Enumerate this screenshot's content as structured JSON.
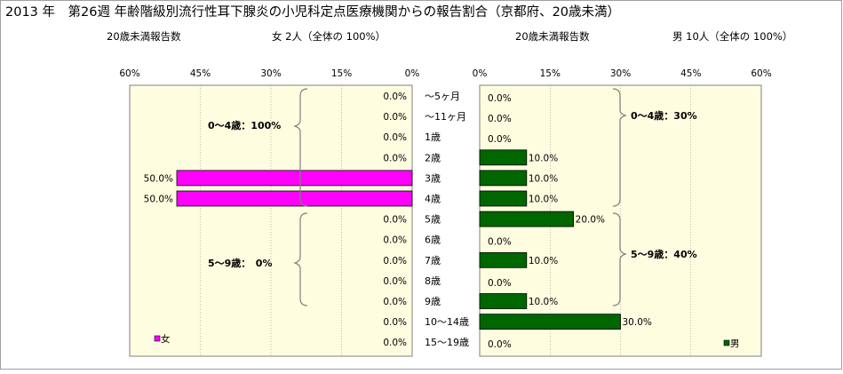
{
  "title": "2013 年　第26週 年齢階級別流行性耳下腺炎の小児科定点医療機関からの報告割合（京都府、20歳未満）",
  "subtitle_left": {
    "label": "20歳未満報告数",
    "count": "女 2人（全体の 100%）"
  },
  "subtitle_right": {
    "label": "20歳未満報告数",
    "count": "男 10人（全体の 100%）"
  },
  "colors": {
    "female": "#ff00ff",
    "male": "#006600",
    "panel_bg": "#fffde0",
    "grid": "#7f7f7f"
  },
  "chart_data": [
    {
      "type": "bar",
      "orientation": "horizontal",
      "direction": "right-to-left",
      "categories": [
        "～5ヶ月",
        "～11ヶ月",
        "1歳",
        "2歳",
        "3歳",
        "4歳",
        "5歳",
        "6歳",
        "7歳",
        "8歳",
        "9歳",
        "10～14歳",
        "15～19歳"
      ],
      "series": [
        {
          "name": "女",
          "values": [
            0,
            0,
            0,
            0,
            50,
            50,
            0,
            0,
            0,
            0,
            0,
            0,
            0
          ]
        }
      ],
      "data_labels": [
        "0.0%",
        "0.0%",
        "0.0%",
        "0.0%",
        "50.0%",
        "50.0%",
        "0.0%",
        "0.0%",
        "0.0%",
        "0.0%",
        "0.0%",
        "0.0%",
        "0.0%"
      ],
      "xlim": [
        0,
        60
      ],
      "xticks": [
        "60%",
        "45%",
        "30%",
        "15%",
        "0%"
      ],
      "xtick_values": [
        60,
        45,
        30,
        15,
        0
      ],
      "group_annotations": [
        "0～4歳：100%",
        "5～9歳：　0%"
      ],
      "legend": "bottom-left",
      "grid": true
    },
    {
      "type": "bar",
      "orientation": "horizontal",
      "direction": "left-to-right",
      "categories": [
        "～5ヶ月",
        "～11ヶ月",
        "1歳",
        "2歳",
        "3歳",
        "4歳",
        "5歳",
        "6歳",
        "7歳",
        "8歳",
        "9歳",
        "10～14歳",
        "15～19歳"
      ],
      "series": [
        {
          "name": "男",
          "values": [
            0,
            0,
            0,
            10,
            10,
            10,
            20,
            0,
            10,
            0,
            10,
            30,
            0
          ]
        }
      ],
      "data_labels": [
        "0.0%",
        "0.0%",
        "0.0%",
        "10.0%",
        "10.0%",
        "10.0%",
        "20.0%",
        "0.0%",
        "10.0%",
        "0.0%",
        "10.0%",
        "30.0%",
        "0.0%"
      ],
      "xlim": [
        0,
        60
      ],
      "xticks": [
        "0%",
        "15%",
        "30%",
        "45%",
        "60%"
      ],
      "xtick_values": [
        0,
        15,
        30,
        45,
        60
      ],
      "group_annotations": [
        "0～4歳：30%",
        "5～9歳：40%"
      ],
      "legend": "bottom-right",
      "grid": true
    }
  ]
}
